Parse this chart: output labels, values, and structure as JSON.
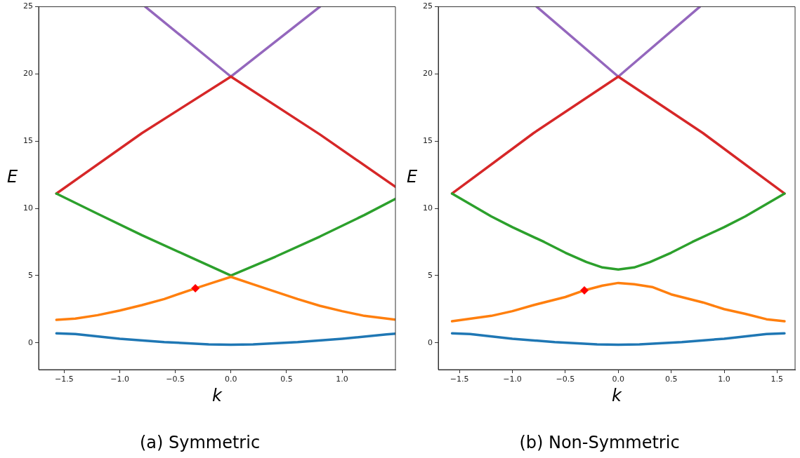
{
  "chart_data": [
    {
      "type": "line",
      "title": "(a) Symmetric",
      "xlabel": "k",
      "ylabel": "E",
      "xlim": [
        -1.73,
        1.48
      ],
      "ylim": [
        -2,
        25
      ],
      "xticks": [
        {
          "value": -1.5,
          "label": "−1.5"
        },
        {
          "value": -1.0,
          "label": "−1.0"
        },
        {
          "value": -0.5,
          "label": "−0.5"
        },
        {
          "value": 0,
          "label": "0.0"
        },
        {
          "value": 0.5,
          "label": "0.5"
        },
        {
          "value": 1.0,
          "label": "1.0"
        }
      ],
      "yticks": [
        0,
        5,
        10,
        15,
        20,
        25
      ],
      "grid": false,
      "legend": false,
      "marker": "none",
      "series": [
        {
          "color": "#1f77b4",
          "x": [
            -1.57,
            -1.4,
            -1.0,
            -0.6,
            -0.2,
            0,
            0.2,
            0.6,
            1.0,
            1.4,
            1.48
          ],
          "values": [
            0.7,
            0.65,
            0.3,
            0.05,
            -0.12,
            -0.15,
            -0.12,
            0.05,
            0.3,
            0.62,
            0.68
          ]
        },
        {
          "color": "#ff7f0e",
          "x": [
            -1.57,
            -1.4,
            -1.2,
            -1.0,
            -0.8,
            -0.6,
            -0.32,
            -0.15,
            0,
            0.2,
            0.4,
            0.6,
            0.8,
            1.0,
            1.2,
            1.48
          ],
          "values": [
            1.7,
            1.8,
            2.05,
            2.4,
            2.8,
            3.25,
            4.05,
            4.5,
            4.9,
            4.35,
            3.8,
            3.25,
            2.75,
            2.35,
            2.0,
            1.72
          ]
        },
        {
          "color": "#2ca02c",
          "x": [
            -1.57,
            -1.2,
            -0.8,
            -0.4,
            0,
            0.4,
            0.8,
            1.2,
            1.48
          ],
          "values": [
            11.1,
            9.6,
            8.0,
            6.5,
            5.0,
            6.4,
            7.9,
            9.5,
            10.7
          ]
        },
        {
          "color": "#d62728",
          "x": [
            -1.57,
            -0.8,
            0,
            0.8,
            1.48
          ],
          "values": [
            11.1,
            15.6,
            19.8,
            15.5,
            11.6
          ]
        },
        {
          "color": "#9467bd",
          "x": [
            -0.77,
            0,
            0.8
          ],
          "values": [
            25,
            19.8,
            25
          ]
        },
        {
          "type": "scatter",
          "marker": "diamond",
          "color": "#ff0000",
          "x": [
            -0.32
          ],
          "values": [
            4.05
          ]
        }
      ]
    },
    {
      "type": "line",
      "title": "(b) Non-Symmetric",
      "xlabel": "k",
      "ylabel": "E",
      "xlim": [
        -1.7,
        1.67
      ],
      "ylim": [
        -2,
        25
      ],
      "xticks": [
        {
          "value": -1.5,
          "label": "−1.5"
        },
        {
          "value": -1.0,
          "label": "−1.0"
        },
        {
          "value": -0.5,
          "label": "−0.5"
        },
        {
          "value": 0,
          "label": "0.0"
        },
        {
          "value": 0.5,
          "label": "0.5"
        },
        {
          "value": 1.0,
          "label": "1.0"
        },
        {
          "value": 1.5,
          "label": "1.5"
        }
      ],
      "yticks": [
        0,
        5,
        10,
        15,
        20,
        25
      ],
      "grid": false,
      "legend": false,
      "marker": "none",
      "series": [
        {
          "color": "#1f77b4",
          "x": [
            -1.57,
            -1.4,
            -1.0,
            -0.6,
            -0.2,
            0,
            0.2,
            0.6,
            1.0,
            1.4,
            1.57
          ],
          "values": [
            0.7,
            0.65,
            0.3,
            0.05,
            -0.12,
            -0.15,
            -0.12,
            0.05,
            0.3,
            0.65,
            0.7
          ]
        },
        {
          "color": "#ff7f0e",
          "x": [
            -1.57,
            -1.2,
            -1.0,
            -0.8,
            -0.5,
            -0.32,
            -0.15,
            0,
            0.15,
            0.32,
            0.5,
            0.8,
            1.0,
            1.2,
            1.4,
            1.57
          ],
          "values": [
            1.6,
            2.0,
            2.35,
            2.8,
            3.4,
            3.9,
            4.25,
            4.45,
            4.35,
            4.15,
            3.6,
            3.0,
            2.5,
            2.15,
            1.75,
            1.6
          ]
        },
        {
          "color": "#2ca02c",
          "x": [
            -1.57,
            -1.2,
            -1.0,
            -0.7,
            -0.5,
            -0.3,
            -0.15,
            0,
            0.15,
            0.3,
            0.5,
            0.7,
            1.0,
            1.2,
            1.57
          ],
          "values": [
            11.1,
            9.4,
            8.6,
            7.5,
            6.7,
            6.0,
            5.6,
            5.45,
            5.6,
            6.0,
            6.7,
            7.5,
            8.6,
            9.4,
            11.1
          ]
        },
        {
          "color": "#d62728",
          "x": [
            -1.57,
            -0.8,
            0,
            0.8,
            1.57
          ],
          "values": [
            11.1,
            15.6,
            19.8,
            15.6,
            11.1
          ]
        },
        {
          "color": "#9467bd",
          "x": [
            -0.77,
            0,
            0.77
          ],
          "values": [
            25,
            19.8,
            25
          ]
        },
        {
          "type": "scatter",
          "marker": "diamond",
          "color": "#ff0000",
          "x": [
            -0.32
          ],
          "values": [
            3.9
          ]
        }
      ]
    }
  ]
}
